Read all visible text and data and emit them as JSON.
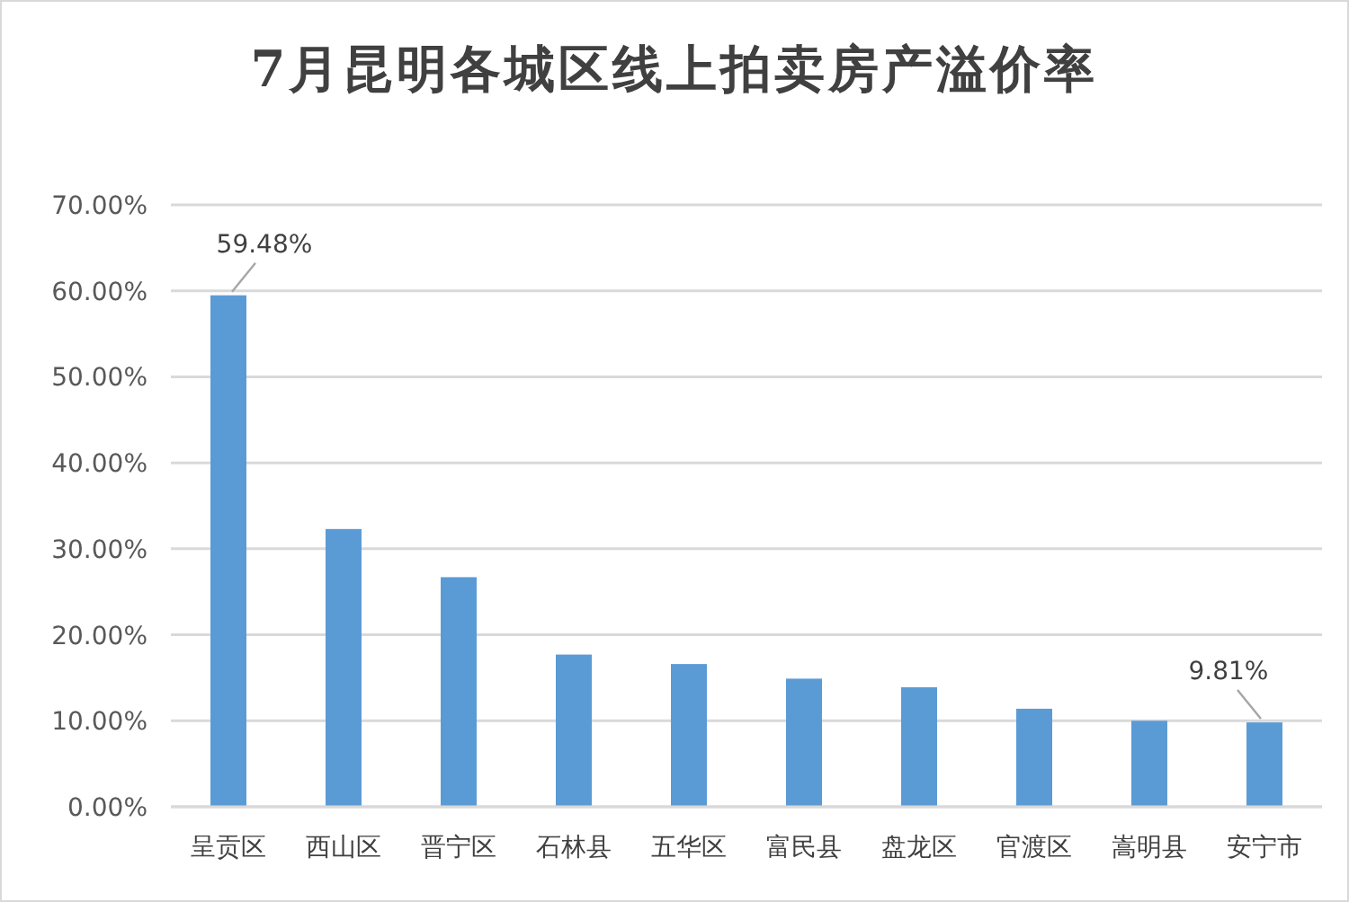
{
  "chart_data": {
    "type": "bar",
    "title": "7月昆明各城区线上拍卖房产溢价率",
    "categories": [
      "呈贡区",
      "西山区",
      "晋宁区",
      "石林县",
      "五华区",
      "富民县",
      "盘龙区",
      "官渡区",
      "嵩明县",
      "安宁市"
    ],
    "values": [
      59.48,
      32.3,
      26.7,
      17.7,
      16.6,
      14.9,
      13.9,
      11.4,
      10.0,
      9.81
    ],
    "value_labels": [
      "59.48%",
      null,
      null,
      null,
      null,
      null,
      null,
      null,
      null,
      "9.81%"
    ],
    "color": "#5b9bd5",
    "ylim": [
      0,
      70
    ],
    "yticks": [
      {
        "value": 0,
        "label": "0.00%"
      },
      {
        "value": 10,
        "label": "10.00%"
      },
      {
        "value": 20,
        "label": "20.00%"
      },
      {
        "value": 30,
        "label": "30.00%"
      },
      {
        "value": 40,
        "label": "40.00%"
      },
      {
        "value": 50,
        "label": "50.00%"
      },
      {
        "value": 60,
        "label": "60.00%"
      },
      {
        "value": 70,
        "label": "70.00%"
      }
    ],
    "grid": "y"
  }
}
